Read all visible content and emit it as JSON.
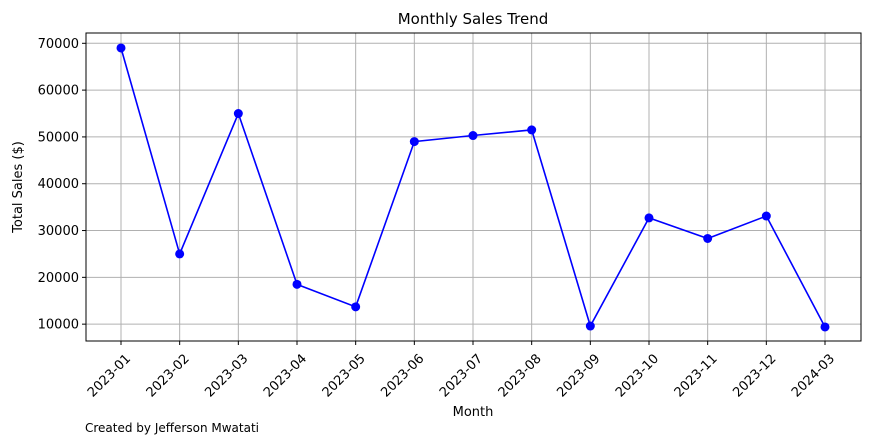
{
  "chart_data": {
    "type": "line",
    "title": "Monthly Sales Trend",
    "xlabel": "Month",
    "ylabel": "Total Sales ($)",
    "categories": [
      "2023-01",
      "2023-02",
      "2023-03",
      "2023-04",
      "2023-05",
      "2023-06",
      "2023-07",
      "2023-08",
      "2023-09",
      "2023-10",
      "2023-11",
      "2023-12",
      "2024-03"
    ],
    "series": [
      {
        "values": [
          69000,
          25000,
          55000,
          18500,
          13700,
          49000,
          50300,
          51500,
          9600,
          32700,
          28300,
          33100,
          9400
        ]
      }
    ],
    "ylim": [
      6400,
      72200
    ],
    "yticks": [
      "10000",
      "20000",
      "30000",
      "40000",
      "50000",
      "60000",
      "70000"
    ],
    "grid": true,
    "line_color": "#0000ff",
    "marker": "circle"
  },
  "footer": {
    "caption": "Created by Jefferson Mwatati"
  }
}
